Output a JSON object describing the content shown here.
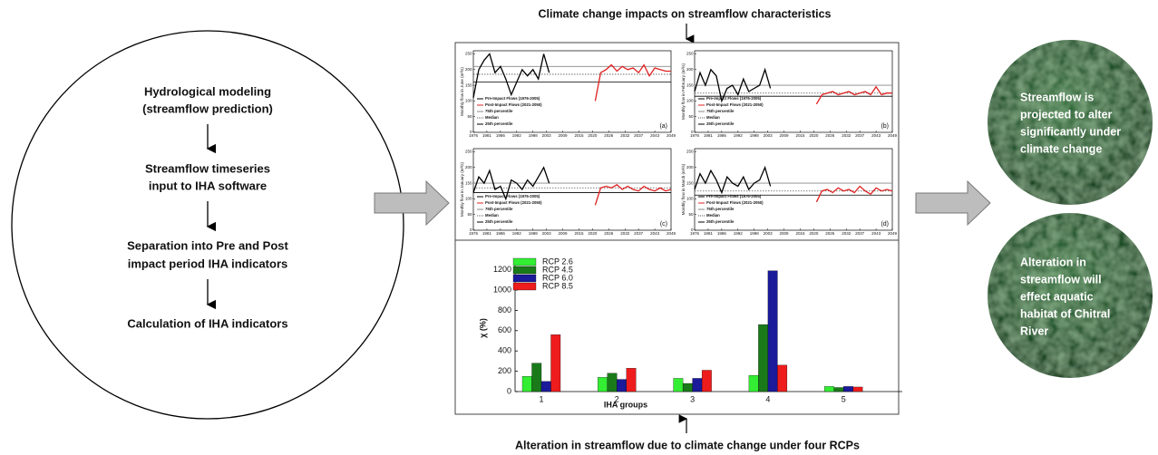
{
  "header": {
    "top_title": "Climate change impacts on streamflow characteristics",
    "bottom_title": "Alteration in streamflow due to climate change under four RCPs"
  },
  "flow": {
    "steps": [
      {
        "lines": [
          "Hydrological modeling",
          "(streamflow prediction)"
        ]
      },
      {
        "lines": [
          "Streamflow timeseries",
          "input to IHA software"
        ]
      },
      {
        "lines": [
          "Separation into Pre and Post",
          "impact period IHA indicators"
        ]
      },
      {
        "lines": [
          "Calculation of IHA indicators"
        ]
      }
    ]
  },
  "outcomes": [
    {
      "lines": [
        "Streamflow is",
        "projected to alter",
        "significantly under",
        "climate change"
      ]
    },
    {
      "lines": [
        "Alteration in",
        "streamflow will",
        "effect aquatic",
        "habitat of Chitral",
        "River"
      ]
    }
  ],
  "chart_data": [
    {
      "type": "line",
      "annotation": "(a)",
      "ylabel": "Monthly flow in June (m³/s)",
      "x": [
        1976,
        1978,
        1980,
        1982,
        1984,
        1986,
        1988,
        1990,
        1992,
        1994,
        1996,
        1998,
        2000,
        2002,
        2004,
        2021,
        2023,
        2025,
        2027,
        2029,
        2031,
        2033,
        2035,
        2037,
        2039,
        2041,
        2043,
        2045,
        2047,
        2049
      ],
      "series": [
        {
          "name": "Pre-Impact Flows (1976-2005)",
          "color": "#000000",
          "values": [
            110,
            200,
            230,
            250,
            190,
            210,
            170,
            120,
            160,
            200,
            180,
            200,
            170,
            250,
            190,
            null,
            null,
            null,
            null,
            null,
            null,
            null,
            null,
            null,
            null,
            null,
            null,
            null,
            null,
            null
          ]
        },
        {
          "name": "Post-Impact Flows (2021-2050)",
          "color": "#e02020",
          "values": [
            null,
            null,
            null,
            null,
            null,
            null,
            null,
            null,
            null,
            null,
            null,
            null,
            null,
            null,
            null,
            100,
            190,
            200,
            215,
            195,
            210,
            200,
            205,
            190,
            215,
            180,
            205,
            200,
            195,
            195
          ]
        }
      ],
      "reference_lines": [
        {
          "name": "75th percentile",
          "value": 210,
          "color": "#888888",
          "dash": false
        },
        {
          "name": "Median",
          "value": 185,
          "color": "#555555",
          "dash": true
        },
        {
          "name": "25th percentile",
          "value": 160,
          "color": "#000000",
          "dash": false
        }
      ],
      "xlim": [
        1976,
        2049
      ],
      "xticks": [
        1976,
        1981,
        1986,
        1992,
        1998,
        2003,
        2009,
        2015,
        2020,
        2026,
        2032,
        2037,
        2043,
        2049
      ],
      "ylim": [
        0,
        260
      ],
      "yticks": [
        0,
        50,
        100,
        150,
        200,
        250
      ]
    },
    {
      "type": "line",
      "annotation": "(b)",
      "ylabel": "Monthly flow in February (m³/s)",
      "x": [
        1976,
        1978,
        1980,
        1982,
        1984,
        1986,
        1988,
        1990,
        1992,
        1994,
        1996,
        1998,
        2000,
        2002,
        2004,
        2021,
        2023,
        2025,
        2027,
        2029,
        2031,
        2033,
        2035,
        2037,
        2039,
        2041,
        2043,
        2045,
        2047,
        2049
      ],
      "series": [
        {
          "name": "Pre-Impact Flows (1976-2005)",
          "color": "#000000",
          "values": [
            130,
            190,
            150,
            200,
            180,
            100,
            140,
            150,
            120,
            170,
            130,
            140,
            150,
            200,
            140,
            null,
            null,
            null,
            null,
            null,
            null,
            null,
            null,
            null,
            null,
            null,
            null,
            null,
            null,
            null
          ]
        },
        {
          "name": "Post-Impact Flows (2021-2050)",
          "color": "#e02020",
          "values": [
            null,
            null,
            null,
            null,
            null,
            null,
            null,
            null,
            null,
            null,
            null,
            null,
            null,
            null,
            null,
            90,
            120,
            125,
            130,
            120,
            125,
            130,
            120,
            125,
            130,
            120,
            145,
            120,
            125,
            125
          ]
        }
      ],
      "reference_lines": [
        {
          "name": "75th percentile",
          "value": 150,
          "color": "#888888",
          "dash": false
        },
        {
          "name": "Median",
          "value": 125,
          "color": "#555555",
          "dash": true
        },
        {
          "name": "25th percentile",
          "value": 115,
          "color": "#000000",
          "dash": false
        }
      ],
      "xlim": [
        1976,
        2049
      ],
      "xticks": [
        1976,
        1981,
        1986,
        1992,
        1998,
        2003,
        2009,
        2015,
        2020,
        2026,
        2032,
        2037,
        2043,
        2049
      ],
      "ylim": [
        0,
        260
      ],
      "yticks": [
        0,
        50,
        100,
        150,
        200,
        250
      ]
    },
    {
      "type": "line",
      "annotation": "(c)",
      "ylabel": "Monthly flow in January (m³/s)",
      "x": [
        1976,
        1978,
        1980,
        1982,
        1984,
        1986,
        1988,
        1990,
        1992,
        1994,
        1996,
        1998,
        2000,
        2002,
        2004,
        2021,
        2023,
        2025,
        2027,
        2029,
        2031,
        2033,
        2035,
        2037,
        2039,
        2041,
        2043,
        2045,
        2047,
        2049
      ],
      "series": [
        {
          "name": "Pre-Impact Flows (1976-2005)",
          "color": "#000000",
          "values": [
            120,
            170,
            150,
            190,
            130,
            140,
            100,
            160,
            150,
            130,
            160,
            140,
            170,
            200,
            150,
            null,
            null,
            null,
            null,
            null,
            null,
            null,
            null,
            null,
            null,
            null,
            null,
            null,
            null,
            null
          ]
        },
        {
          "name": "Post-Impact Flows (2021-2050)",
          "color": "#e02020",
          "values": [
            null,
            null,
            null,
            null,
            null,
            null,
            null,
            null,
            null,
            null,
            null,
            null,
            null,
            null,
            null,
            80,
            135,
            140,
            135,
            145,
            130,
            140,
            130,
            125,
            140,
            130,
            125,
            135,
            125,
            130
          ]
        }
      ],
      "reference_lines": [
        {
          "name": "75th percentile",
          "value": 150,
          "color": "#888888",
          "dash": false
        },
        {
          "name": "Median",
          "value": 135,
          "color": "#555555",
          "dash": true
        },
        {
          "name": "25th percentile",
          "value": 120,
          "color": "#000000",
          "dash": false
        }
      ],
      "xlim": [
        1976,
        2049
      ],
      "xticks": [
        1976,
        1981,
        1986,
        1992,
        1998,
        2003,
        2009,
        2015,
        2020,
        2026,
        2032,
        2037,
        2043,
        2049
      ],
      "ylim": [
        0,
        260
      ],
      "yticks": [
        0,
        50,
        100,
        150,
        200,
        250
      ]
    },
    {
      "type": "line",
      "annotation": "(d)",
      "ylabel": "Monthly flow in March (m³/s)",
      "x": [
        1976,
        1978,
        1980,
        1982,
        1984,
        1986,
        1988,
        1990,
        1992,
        1994,
        1996,
        1998,
        2000,
        2002,
        2004,
        2021,
        2023,
        2025,
        2027,
        2029,
        2031,
        2033,
        2035,
        2037,
        2039,
        2041,
        2043,
        2045,
        2047,
        2049
      ],
      "series": [
        {
          "name": "Pre-Impact Flows (1976-2005)",
          "color": "#000000",
          "values": [
            130,
            180,
            150,
            190,
            160,
            120,
            170,
            150,
            140,
            170,
            130,
            150,
            160,
            200,
            140,
            null,
            null,
            null,
            null,
            null,
            null,
            null,
            null,
            null,
            null,
            null,
            null,
            null,
            null,
            null
          ]
        },
        {
          "name": "Post-Impact Flows (2021-2050)",
          "color": "#e02020",
          "values": [
            null,
            null,
            null,
            null,
            null,
            null,
            null,
            null,
            null,
            null,
            null,
            null,
            null,
            null,
            null,
            90,
            125,
            130,
            120,
            135,
            125,
            130,
            120,
            140,
            125,
            115,
            135,
            125,
            130,
            125
          ]
        }
      ],
      "reference_lines": [
        {
          "name": "75th percentile",
          "value": 150,
          "color": "#888888",
          "dash": false
        },
        {
          "name": "Median",
          "value": 125,
          "color": "#555555",
          "dash": true
        },
        {
          "name": "25th percentile",
          "value": 112,
          "color": "#000000",
          "dash": false
        }
      ],
      "xlim": [
        1976,
        2049
      ],
      "xticks": [
        1976,
        1981,
        1986,
        1992,
        1998,
        2003,
        2009,
        2015,
        2020,
        2026,
        2032,
        2037,
        2043,
        2049
      ],
      "ylim": [
        0,
        260
      ],
      "yticks": [
        0,
        50,
        100,
        150,
        200,
        250
      ]
    },
    {
      "type": "bar",
      "xlabel": "IHA groups",
      "ylabel": "χ (%)",
      "categories": [
        "1",
        "2",
        "3",
        "4",
        "5"
      ],
      "series": [
        {
          "name": "RCP 2.6",
          "color": "#33ee33",
          "values": [
            150,
            140,
            130,
            160,
            50
          ]
        },
        {
          "name": "RCP 4.5",
          "color": "#1a7a1a",
          "values": [
            280,
            180,
            80,
            660,
            40
          ]
        },
        {
          "name": "RCP 6.0",
          "color": "#1a1a9a",
          "values": [
            100,
            120,
            130,
            1190,
            50
          ]
        },
        {
          "name": "RCP 8.5",
          "color": "#ee1c1c",
          "values": [
            560,
            230,
            210,
            260,
            45
          ]
        }
      ],
      "ylim": [
        0,
        1250
      ],
      "yticks": [
        0,
        200,
        400,
        600,
        800,
        1000,
        1200
      ]
    }
  ]
}
